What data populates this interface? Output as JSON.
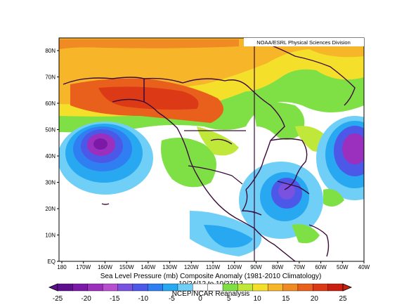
{
  "map": {
    "credit": "NOAA/ESRL Physical Sciences Division",
    "title": "Sea Level Pressure (mb) Composite Anomaly (1981-2010 Climatology)",
    "date_range": "10/24/12 to 10/27/12",
    "source": "NCEP/NCAR Reanalysis",
    "lat_labels": [
      "EQ",
      "10N",
      "20N",
      "30N",
      "40N",
      "50N",
      "60N",
      "70N",
      "80N"
    ],
    "lon_labels": [
      "180",
      "170W",
      "160W",
      "150W",
      "140W",
      "130W",
      "120W",
      "110W",
      "100W",
      "90W",
      "80W",
      "70W",
      "60W",
      "50W",
      "40W"
    ],
    "colorbar": {
      "ticks": [
        "-25",
        "-20",
        "-15",
        "-10",
        "-5",
        "0",
        "5",
        "10",
        "15",
        "20",
        "25"
      ],
      "colors": [
        "#5e0f8e",
        "#7a1aa6",
        "#9b2fbe",
        "#b84fd0",
        "#7a52e0",
        "#4c58e8",
        "#2f7ff2",
        "#27a8f0",
        "#6fcff7",
        "#ffffff",
        "#ffffff",
        "#7ee045",
        "#bfe83a",
        "#f4e02a",
        "#f7b52a",
        "#f08a22",
        "#e8601c",
        "#dc3a16",
        "#c81f10"
      ]
    }
  }
}
